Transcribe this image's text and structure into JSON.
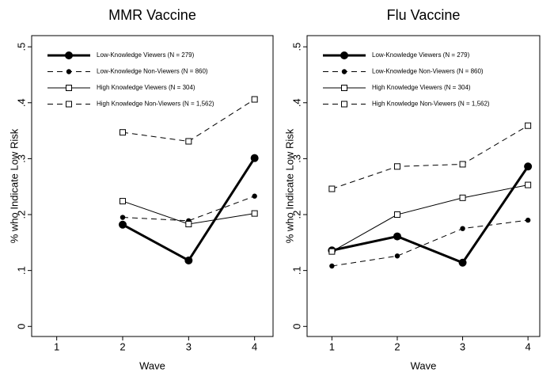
{
  "chart_data": [
    {
      "type": "line",
      "title": "MMR Vaccine",
      "x_label": "Wave",
      "y_label": "% who Indicate Low Risk",
      "x": [
        1,
        2,
        3,
        4
      ],
      "xlim": [
        0.62,
        4.28
      ],
      "xticks": [
        1,
        2,
        3,
        4
      ],
      "ylim": [
        -0.018,
        0.52
      ],
      "yticks": [
        0,
        {
          "value": 0.1,
          "label": ".1"
        },
        {
          "value": 0.2,
          "label": ".2"
        },
        {
          "value": 0.3,
          "label": ".3"
        },
        {
          "value": 0.4,
          "label": ".4"
        },
        {
          "value": 0.5,
          "label": ".5"
        }
      ],
      "legend": "upper left",
      "series": [
        {
          "name": "Low-Knowledge Viewers (N = 279)",
          "color": "#000000",
          "dash": "solid",
          "marker": "circle",
          "marker_size": 5,
          "line_width": 3,
          "values": [
            null,
            0.182,
            0.118,
            0.301
          ]
        },
        {
          "name": "Low-Knowledge Non-Viewers (N = 860)",
          "color": "#000000",
          "dash": "dashed",
          "marker": "circle",
          "marker_size": 3.2,
          "line_width": 1,
          "values": [
            null,
            0.195,
            0.189,
            0.233
          ]
        },
        {
          "name": "High Knowledge Viewers (N = 304)",
          "color": "#000000",
          "dash": "solid",
          "marker": "square",
          "marker_size": 3.5,
          "line_width": 1,
          "values": [
            null,
            0.224,
            0.183,
            0.202
          ]
        },
        {
          "name": "High Knowledge Non-Viewers (N = 1,562)",
          "color": "#000000",
          "dash": "dashed",
          "marker": "square",
          "marker_size": 3.5,
          "line_width": 1,
          "values": [
            null,
            0.347,
            0.331,
            0.406
          ]
        }
      ]
    },
    {
      "type": "line",
      "title": "Flu Vaccine",
      "x_label": "Wave",
      "y_label": "% who Indicate Low Risk",
      "x": [
        1,
        2,
        3,
        4
      ],
      "xlim": [
        0.62,
        4.18
      ],
      "xticks": [
        1,
        2,
        3,
        4
      ],
      "ylim": [
        -0.018,
        0.52
      ],
      "yticks": [
        0,
        {
          "value": 0.1,
          "label": ".1"
        },
        {
          "value": 0.2,
          "label": ".2"
        },
        {
          "value": 0.3,
          "label": ".3"
        },
        {
          "value": 0.4,
          "label": ".4"
        },
        {
          "value": 0.5,
          "label": ".5"
        }
      ],
      "legend": "upper left",
      "series": [
        {
          "name": "Low-Knowledge Viewers (N = 279)",
          "color": "#000000",
          "dash": "solid",
          "marker": "circle",
          "marker_size": 5,
          "line_width": 3,
          "values": [
            0.136,
            0.161,
            0.114,
            0.286
          ]
        },
        {
          "name": "Low-Knowledge Non-Viewers (N = 860)",
          "color": "#000000",
          "dash": "dashed",
          "marker": "circle",
          "marker_size": 3.2,
          "line_width": 1,
          "values": [
            0.108,
            0.126,
            0.175,
            0.19
          ]
        },
        {
          "name": "High Knowledge Viewers (N = 304)",
          "color": "#000000",
          "dash": "solid",
          "marker": "square",
          "marker_size": 3.5,
          "line_width": 1,
          "values": [
            0.134,
            0.2,
            0.23,
            0.253
          ]
        },
        {
          "name": "High Knowledge Non-Viewers (N = 1,562)",
          "color": "#000000",
          "dash": "dashed",
          "marker": "square",
          "marker_size": 3.5,
          "line_width": 1,
          "values": [
            0.246,
            0.286,
            0.29,
            0.359
          ]
        }
      ]
    }
  ]
}
